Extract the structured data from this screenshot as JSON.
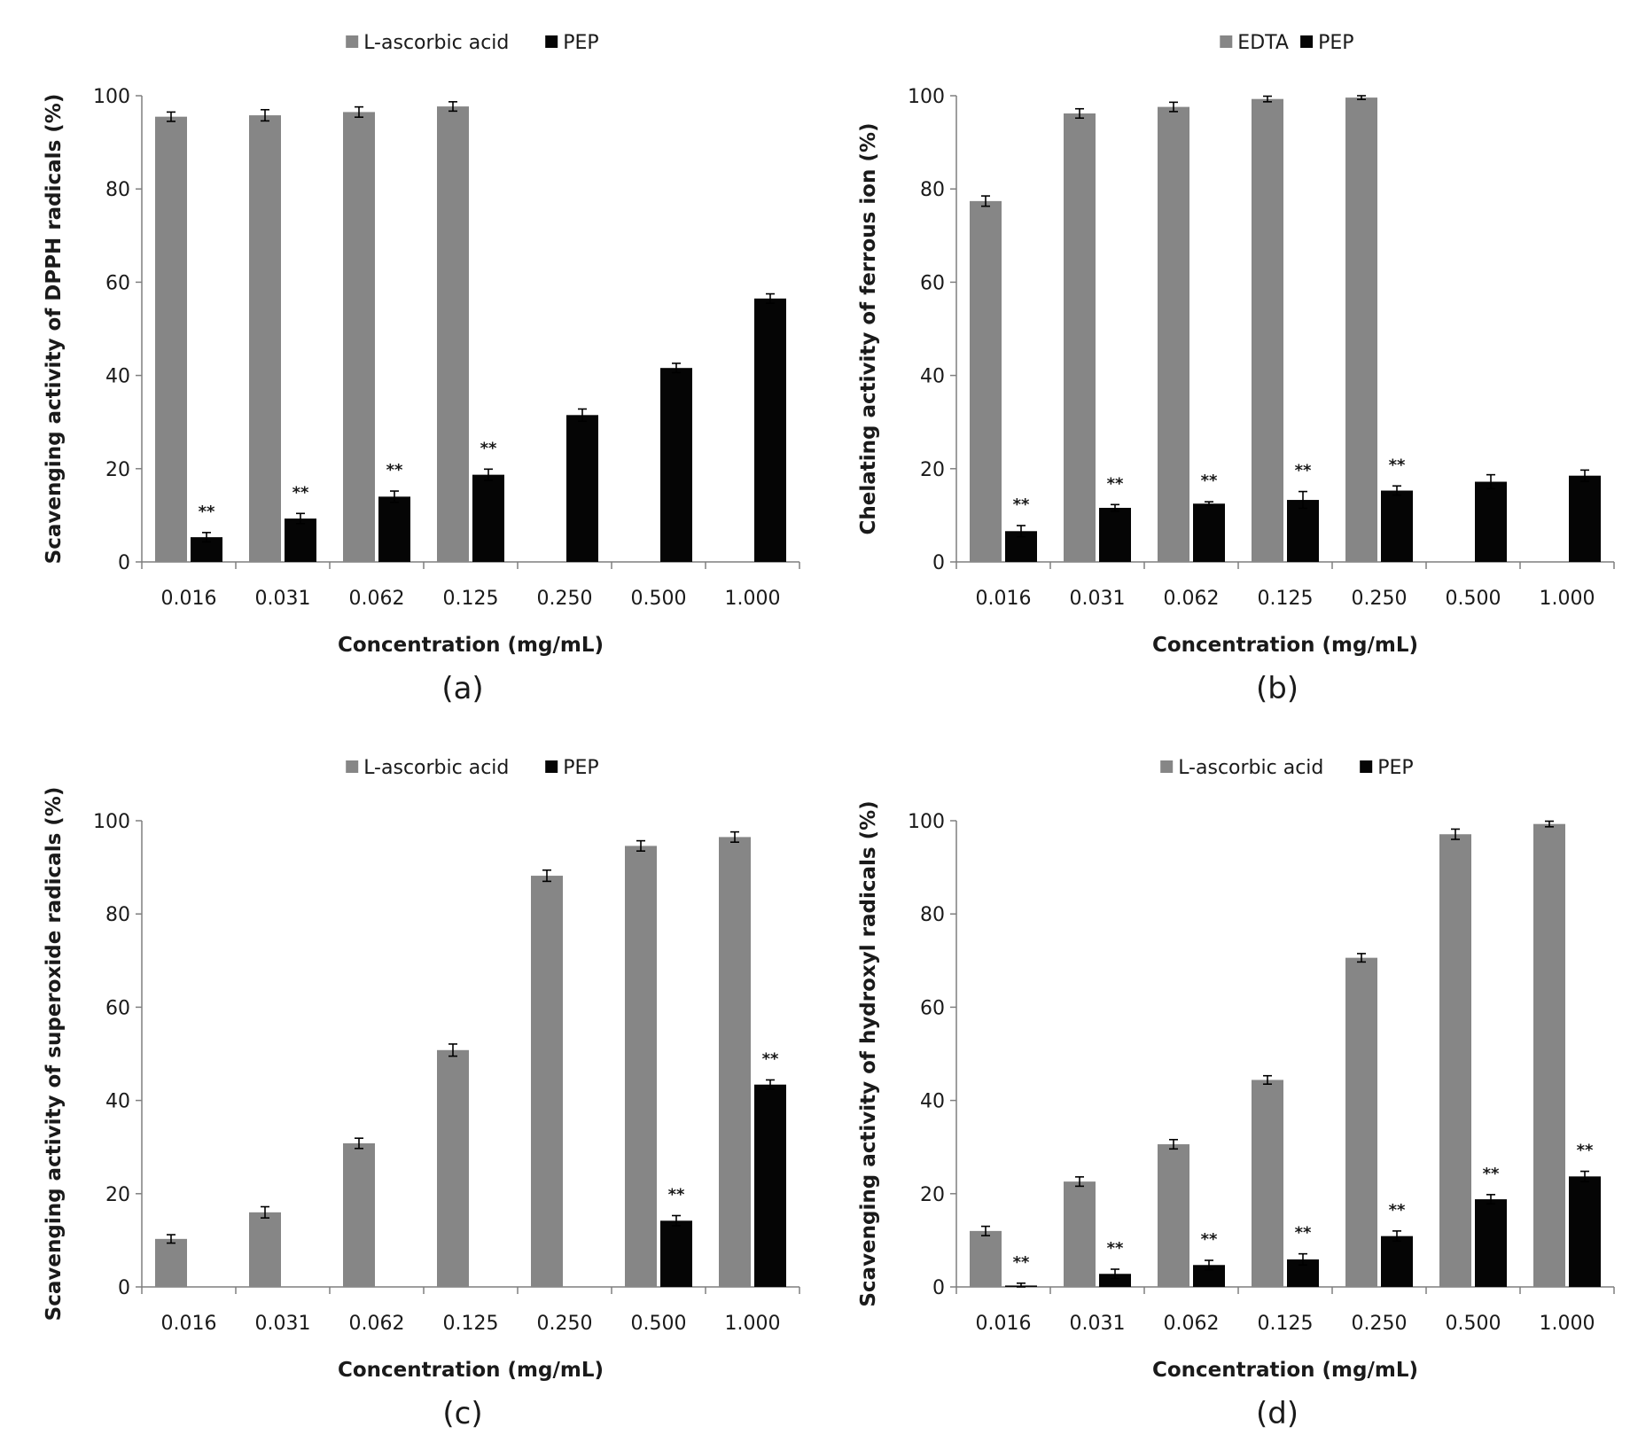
{
  "colors": {
    "reference": "#868686",
    "pep": "#050505",
    "axis": "#7f7f7f",
    "error": "#000000"
  },
  "chart_data": [
    {
      "type": "bar",
      "panel_label": "(a)",
      "categories": [
        "0.016",
        "0.031",
        "0.062",
        "0.125",
        "0.250",
        "0.500",
        "1.000"
      ],
      "series": [
        {
          "name": "L-ascorbic acid",
          "values": [
            95.5,
            95.8,
            96.5,
            97.7,
            null,
            null,
            null
          ],
          "errors": [
            1.0,
            1.2,
            1.1,
            1.0,
            null,
            null,
            null
          ]
        },
        {
          "name": "PEP",
          "values": [
            5.3,
            9.3,
            14.0,
            18.7,
            31.5,
            41.6,
            56.5
          ],
          "errors": [
            1.0,
            1.1,
            1.2,
            1.2,
            1.3,
            1.0,
            1.0
          ]
        }
      ],
      "significance": [
        {
          "series": "PEP",
          "index": 0,
          "label": "**"
        },
        {
          "series": "PEP",
          "index": 1,
          "label": "**"
        },
        {
          "series": "PEP",
          "index": 2,
          "label": "**"
        },
        {
          "series": "PEP",
          "index": 3,
          "label": "**"
        }
      ],
      "ylabel": "Scavenging activity of DPPH radicals (%)",
      "xlabel": "Concentration (mg/mL)",
      "ylim": [
        0,
        100
      ],
      "yticks": [
        0,
        20,
        40,
        60,
        80,
        100
      ],
      "legend_position": "top-center",
      "grid": false
    },
    {
      "type": "bar",
      "panel_label": "(b)",
      "categories": [
        "0.016",
        "0.031",
        "0.062",
        "0.125",
        "0.250",
        "0.500",
        "1.000"
      ],
      "series": [
        {
          "name": "EDTA",
          "values": [
            77.4,
            96.2,
            97.6,
            99.3,
            99.6,
            null,
            null
          ],
          "errors": [
            1.1,
            1.0,
            1.0,
            0.6,
            0.4,
            null,
            null
          ]
        },
        {
          "name": "PEP",
          "values": [
            6.6,
            11.6,
            12.5,
            13.3,
            15.3,
            17.2,
            18.5
          ],
          "errors": [
            1.2,
            0.7,
            0.4,
            1.8,
            1.0,
            1.5,
            1.2
          ]
        }
      ],
      "significance": [
        {
          "series": "PEP",
          "index": 0,
          "label": "**"
        },
        {
          "series": "PEP",
          "index": 1,
          "label": "**"
        },
        {
          "series": "PEP",
          "index": 2,
          "label": "**"
        },
        {
          "series": "PEP",
          "index": 3,
          "label": "**"
        },
        {
          "series": "PEP",
          "index": 4,
          "label": "**"
        }
      ],
      "ylabel": "Chelating activity of ferrous ion (%)",
      "xlabel": "Concentration (mg/mL)",
      "ylim": [
        0,
        100
      ],
      "yticks": [
        0,
        20,
        40,
        60,
        80,
        100
      ],
      "legend_position": "top-center",
      "grid": false
    },
    {
      "type": "bar",
      "panel_label": "(c)",
      "categories": [
        "0.016",
        "0.031",
        "0.062",
        "0.125",
        "0.250",
        "0.500",
        "1.000"
      ],
      "series": [
        {
          "name": "L-ascorbic acid",
          "values": [
            10.3,
            16.0,
            30.8,
            50.8,
            88.2,
            94.6,
            96.5
          ],
          "errors": [
            0.9,
            1.2,
            1.1,
            1.3,
            1.2,
            1.1,
            1.1
          ]
        },
        {
          "name": "PEP",
          "values": [
            null,
            null,
            null,
            null,
            null,
            14.2,
            43.4
          ],
          "errors": [
            null,
            null,
            null,
            null,
            null,
            1.1,
            1.0
          ]
        }
      ],
      "significance": [
        {
          "series": "PEP",
          "index": 5,
          "label": "**"
        },
        {
          "series": "PEP",
          "index": 6,
          "label": "**"
        }
      ],
      "ylabel": "Scavenging activity of superoxide radicals (%)",
      "xlabel": "Concentration (mg/mL)",
      "ylim": [
        0,
        100
      ],
      "yticks": [
        0,
        20,
        40,
        60,
        80,
        100
      ],
      "legend_position": "top-center",
      "grid": false
    },
    {
      "type": "bar",
      "panel_label": "(d)",
      "categories": [
        "0.016",
        "0.031",
        "0.062",
        "0.125",
        "0.250",
        "0.500",
        "1.000"
      ],
      "series": [
        {
          "name": "L-ascorbic acid",
          "values": [
            12.0,
            22.6,
            30.6,
            44.4,
            70.6,
            97.1,
            99.3
          ],
          "errors": [
            1.0,
            1.0,
            1.0,
            0.9,
            0.9,
            1.1,
            0.6
          ]
        },
        {
          "name": "PEP",
          "values": [
            0.3,
            2.8,
            4.7,
            5.9,
            10.9,
            18.8,
            23.7
          ],
          "errors": [
            0.5,
            1.0,
            1.0,
            1.2,
            1.1,
            1.0,
            1.1
          ]
        }
      ],
      "significance": [
        {
          "series": "PEP",
          "index": 0,
          "label": "**"
        },
        {
          "series": "PEP",
          "index": 1,
          "label": "**"
        },
        {
          "series": "PEP",
          "index": 2,
          "label": "**"
        },
        {
          "series": "PEP",
          "index": 3,
          "label": "**"
        },
        {
          "series": "PEP",
          "index": 4,
          "label": "**"
        },
        {
          "series": "PEP",
          "index": 5,
          "label": "**"
        },
        {
          "series": "PEP",
          "index": 6,
          "label": "**"
        }
      ],
      "ylabel": "Scavenging activity of hydroxyl radicals (%)",
      "xlabel": "Concentration (mg/mL)",
      "ylim": [
        0,
        100
      ],
      "yticks": [
        0,
        20,
        40,
        60,
        80,
        100
      ],
      "legend_position": "top-center",
      "grid": false
    }
  ]
}
